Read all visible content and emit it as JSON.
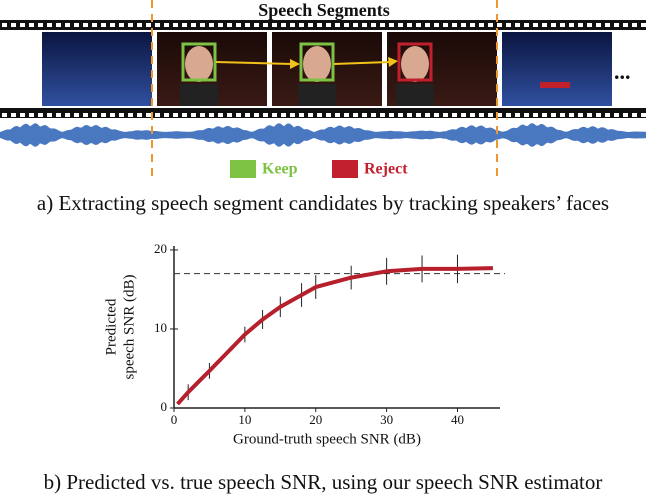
{
  "figure_a": {
    "title": "Speech Segments",
    "ellipsis": "...",
    "legend": [
      {
        "label": "Keep",
        "color": "#7dc242"
      },
      {
        "label": "Reject",
        "color": "#c3202f"
      }
    ],
    "caption": "a) Extracting speech segment candidates by tracking speakers’ faces"
  },
  "chart_data": {
    "type": "line",
    "xlabel": "Ground-truth speech SNR (dB)",
    "ylabel": [
      "Predicted",
      "speech SNR (dB)"
    ],
    "x": [
      0.5,
      2,
      5,
      10,
      12.5,
      15,
      18,
      20,
      25,
      30,
      35,
      40,
      45
    ],
    "series": [
      {
        "color": "#b5202c",
        "values": [
          0.5,
          2,
          4.7,
          9.3,
          11.2,
          12.8,
          14.3,
          15.3,
          16.5,
          17.3,
          17.6,
          17.6,
          17.7
        ],
        "errors": [
          null,
          1,
          1,
          1,
          1.2,
          1.3,
          1.5,
          1.5,
          1.5,
          1.7,
          1.7,
          1.8,
          null
        ]
      }
    ],
    "reference_line": 17,
    "xlim": [
      0,
      46
    ],
    "ylim": [
      0,
      20.5
    ],
    "xticks": [
      0,
      10,
      20,
      30,
      40
    ],
    "yticks": [
      0,
      10,
      20
    ]
  },
  "caption_b": "b) Predicted vs. true speech SNR, using our speech SNR estimator"
}
